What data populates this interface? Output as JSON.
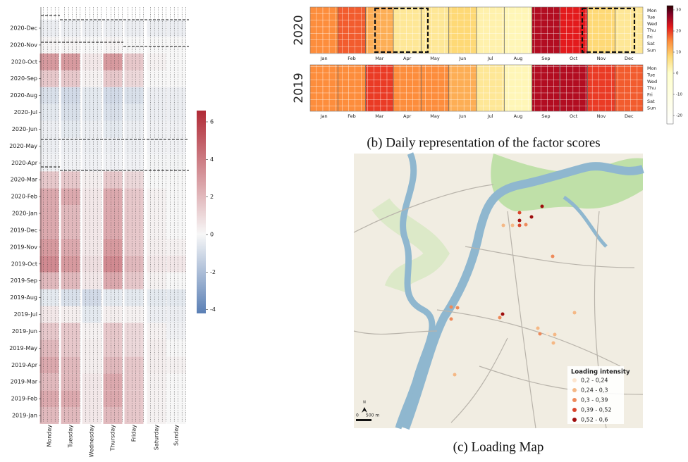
{
  "chart_data": [
    {
      "type": "heatmap",
      "rows": [
        "2019-Jan",
        "2019-Feb",
        "2019-Mar",
        "2019-Apr",
        "2019-May",
        "2019-Jun",
        "2019-Jul",
        "2019-Aug",
        "2019-Sep",
        "2019-Oct",
        "2019-Nov",
        "2019-Dec",
        "2020-Jan",
        "2020-Feb",
        "2020-Mar",
        "2020-Apr",
        "2020-May",
        "2020-Jun",
        "2020-Jul",
        "2020-Aug",
        "2020-Sep",
        "2020-Oct",
        "2020-Nov",
        "2020-Dec"
      ],
      "columns": [
        "Monday",
        "Tuesday",
        "Wednesday",
        "Thursday",
        "Friday",
        "Saturday",
        "Sunday"
      ],
      "values": [
        [
          2,
          2,
          0.5,
          2,
          1.5,
          0.2,
          0
        ],
        [
          2.5,
          2.5,
          0.5,
          2.5,
          1.5,
          0.2,
          0
        ],
        [
          2,
          2,
          0.5,
          2.5,
          1.5,
          0.2,
          0
        ],
        [
          2.5,
          2,
          0.3,
          2,
          1.5,
          0.3,
          0.2
        ],
        [
          2,
          1.5,
          0.3,
          1.5,
          1,
          0.3,
          0
        ],
        [
          1.5,
          1.5,
          0.2,
          1.5,
          1,
          0.2,
          -0.2
        ],
        [
          0.5,
          0.3,
          -0.5,
          0.3,
          0.2,
          -0.3,
          -0.3
        ],
        [
          -0.5,
          -0.8,
          -1,
          -0.5,
          -0.5,
          -0.5,
          -0.5
        ],
        [
          2,
          2,
          0.5,
          2.5,
          1.5,
          0.2,
          0
        ],
        [
          3.5,
          3,
          0.8,
          3.5,
          2,
          0.5,
          0.5
        ],
        [
          3,
          2.5,
          0.5,
          3,
          1.5,
          0.3,
          0.2
        ],
        [
          2.5,
          2,
          0.5,
          2.5,
          1.5,
          0.2,
          0
        ],
        [
          2.5,
          2,
          0.5,
          2.5,
          1.5,
          0.2,
          0
        ],
        [
          2.5,
          2.5,
          0.5,
          2.5,
          1.5,
          0.2,
          0
        ],
        [
          1.5,
          1.5,
          0.3,
          1.5,
          1,
          0,
          0
        ],
        [
          -0.2,
          -0.2,
          -0.2,
          -0.2,
          -0.2,
          -0.1,
          -0.1
        ],
        [
          -0.3,
          -0.3,
          -0.3,
          -0.3,
          -0.3,
          -0.2,
          -0.2
        ],
        [
          -0.3,
          -0.5,
          -0.3,
          -0.5,
          -0.3,
          -0.2,
          -0.2
        ],
        [
          -0.5,
          -0.8,
          -0.5,
          -0.8,
          -0.5,
          -0.3,
          -0.3
        ],
        [
          -0.8,
          -1,
          -0.5,
          -1,
          -0.8,
          -0.3,
          -0.3
        ],
        [
          1.5,
          1.5,
          0.2,
          1.5,
          1,
          0,
          0
        ],
        [
          3,
          3,
          0.5,
          3,
          1.5,
          0.2,
          0
        ],
        [
          0.1,
          0.1,
          0,
          0.1,
          0,
          0,
          0
        ],
        [
          -0.3,
          -0.3,
          -0.3,
          -0.3,
          -0.3,
          -0.3,
          -0.3
        ]
      ],
      "colorbar": {
        "lim": [
          -4.2,
          6.6
        ],
        "ticks": [
          6,
          4,
          2,
          0,
          -2,
          -4
        ]
      }
    },
    {
      "type": "calendar",
      "months": [
        "Jan",
        "Feb",
        "Mar",
        "Apr",
        "May",
        "Jun",
        "Jul",
        "Aug",
        "Sep",
        "Oct",
        "Nov",
        "Dec"
      ],
      "weekdays": [
        "Mon",
        "Tue",
        "Wed",
        "Thu",
        "Fri",
        "Sat",
        "Sun"
      ],
      "series": [
        {
          "name": "2020",
          "values": [
            15,
            18,
            12,
            5,
            5,
            8,
            3,
            2,
            25,
            22,
            8,
            5
          ]
        },
        {
          "name": "2019",
          "values": [
            15,
            15,
            20,
            15,
            15,
            12,
            5,
            2,
            25,
            25,
            20,
            18
          ]
        }
      ],
      "colorbar": {
        "lim": [
          -24,
          32
        ],
        "ticks": [
          30,
          20,
          10,
          0,
          -10,
          -20
        ]
      },
      "caption": "(b) Daily representation of the factor scores"
    }
  ],
  "map": {
    "legend_title": "Loading intensity",
    "legend": [
      {
        "label": "0,2 - 0,24",
        "color": "#fde6cf"
      },
      {
        "label": "0,24 - 0,3",
        "color": "#f5b885"
      },
      {
        "label": "0,3 - 0,39",
        "color": "#ee8a5a"
      },
      {
        "label": "0,39 - 0,52",
        "color": "#d9442b"
      },
      {
        "label": "0,52 - 0,6",
        "color": "#9e0d0d"
      }
    ],
    "north": "N",
    "scale": [
      "0",
      "500 m"
    ],
    "caption": "(c) Loading Map"
  }
}
